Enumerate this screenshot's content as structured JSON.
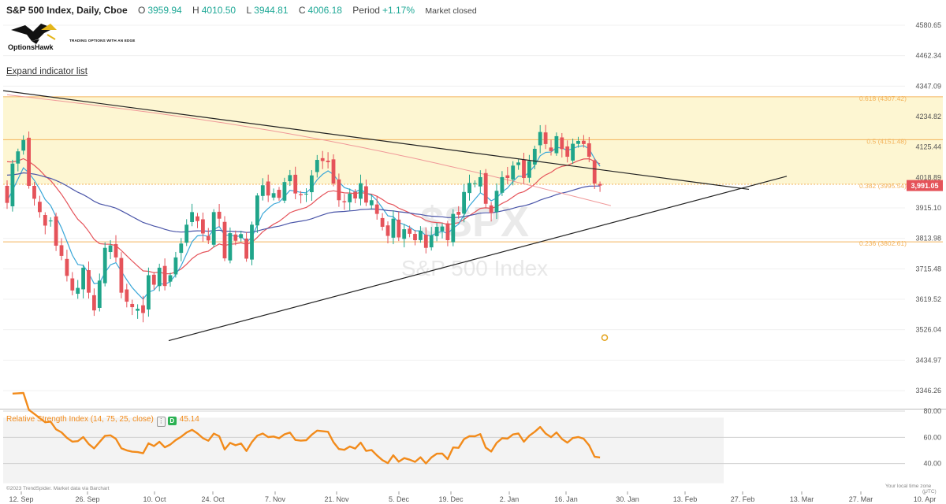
{
  "header": {
    "symbol": "S&P 500 Index, Daily, Cboe",
    "o_label": "O",
    "o_value": "3959.94",
    "h_label": "H",
    "h_value": "4010.50",
    "l_label": "L",
    "l_value": "3944.81",
    "c_label": "C",
    "c_value": "4006.18",
    "period_label": "Period",
    "period_value": "+1.17%",
    "market_status": "Market closed"
  },
  "logo": {
    "brand": "OptionsHawk",
    "tagline": "TRADING OPTIONS WITH AN EDGE"
  },
  "expand_link": "Expand indicator list",
  "watermark": {
    "ticker": "$SPX",
    "name": "S&P 500 Index"
  },
  "rsi_legend": {
    "name": "Relative Strength Index (14, 75, 25, close)",
    "d_label": "D",
    "value": "45.14"
  },
  "footer": {
    "credit": "©2023 TrendSpider. Market data via Barchart",
    "time_zone": "Your local time zone",
    "time_zone_2": "(UTC)"
  },
  "colors": {
    "up": "#20a58a",
    "down": "#e5535a",
    "ema_fast": "#3aa7d8",
    "ema_mid": "#e5535a",
    "ema_slow": "#f09999",
    "sma_long": "#4a55a8",
    "fib": "#f3b35c",
    "fib_band": "#fdf6d2",
    "rsi_line": "#f28b1b",
    "price_tag": "#e5535a"
  },
  "chart_data": [
    {
      "type": "candlestick",
      "title": "S&P 500 Index, Daily, Cboe",
      "x_tick_labels": [
        "12. Sep",
        "26. Sep",
        "10. Oct",
        "24. Oct",
        "7. Nov",
        "21. Nov",
        "5. Dec",
        "19. Dec",
        "2. Jan",
        "16. Jan",
        "30. Jan",
        "13. Feb",
        "27. Feb",
        "13. Mar",
        "27. Mar",
        "10. Apr"
      ],
      "y_tick_labels": [
        "4580.65",
        "4462.34",
        "4347.09",
        "4234.82",
        "4125.44",
        "4018.89",
        "3915.10",
        "3813.98",
        "3715.48",
        "3619.52",
        "3526.04",
        "3434.97",
        "3346.26"
      ],
      "y_ticks": [
        4580.65,
        4462.34,
        4347.09,
        4234.82,
        4125.44,
        4018.89,
        3915.1,
        3813.98,
        3715.48,
        3619.52,
        3526.04,
        3434.97,
        3346.26
      ],
      "scale": "log",
      "last_price_label": "3,991.05",
      "last_price": 3991.05,
      "fibonacci_levels": [
        {
          "label": "0.618 (4307.42)",
          "value": 4307.42
        },
        {
          "label": "0.5 (4151.48)",
          "value": 4151.48
        },
        {
          "label": "0.382 (3995.54)",
          "value": 3995.54
        },
        {
          "label": "0.236 (3802.61)",
          "value": 3802.61
        }
      ],
      "closes": [
        3932,
        4067,
        4110,
        4150,
        3990,
        3946,
        3901,
        3856,
        3873,
        3790,
        3757,
        3693,
        3647,
        3655,
        3719,
        3640,
        3585,
        3678,
        3783,
        3791,
        3752,
        3640,
        3612,
        3595,
        3590,
        3577,
        3695,
        3665,
        3719,
        3661,
        3695,
        3752,
        3797,
        3859,
        3901,
        3871,
        3830,
        3807,
        3901,
        3879,
        3749,
        3831,
        3806,
        3828,
        3748,
        3859,
        3957,
        3992,
        3957,
        3965,
        3949,
        4003,
        4027,
        3964,
        3958,
        3963,
        4026,
        4080,
        4076,
        4072,
        3998,
        3941,
        3934,
        3963,
        3947,
        3999,
        3933,
        3941,
        3895,
        3852,
        3822,
        3879,
        3817,
        3844,
        3829,
        3808,
        3839,
        3783,
        3824,
        3852,
        3853,
        3808,
        3895,
        3892,
        3969,
        4000,
        3999,
        4020,
        3929,
        3898,
        3973,
        4020,
        4017,
        4060,
        4071,
        4017,
        4076,
        4119,
        4179,
        4136,
        4111,
        4164,
        4118,
        4091,
        4137,
        4147,
        4136,
        4091,
        3998,
        3991
      ],
      "series": [
        {
          "name": "RSI (14, 75, 25, close)",
          "y_range": [
            20,
            80
          ],
          "y_tick_labels": [
            "80.00",
            "60.00",
            "40.00"
          ],
          "last_value": 45.14
        }
      ]
    }
  ]
}
